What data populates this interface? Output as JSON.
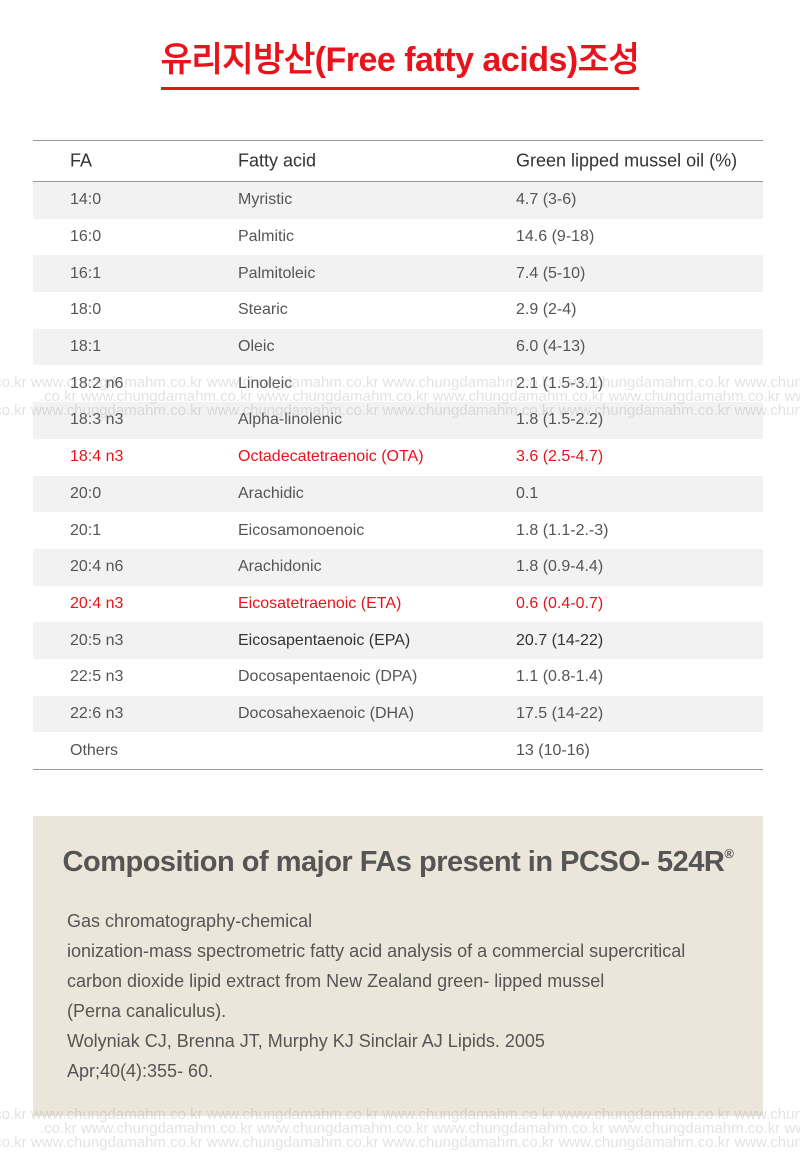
{
  "title": "유리지방산(Free fatty acids)조성",
  "table": {
    "headers": [
      "FA",
      "Fatty acid",
      "Green lipped mussel oil (%)"
    ],
    "rows": [
      {
        "fa": "14:0",
        "name": "Myristic",
        "value": "4.7 (3-6)"
      },
      {
        "fa": "16:0",
        "name": "Palmitic",
        "value": "14.6 (9-18)"
      },
      {
        "fa": "16:1",
        "name": "Palmitoleic",
        "value": "7.4 (5-10)"
      },
      {
        "fa": "18:0",
        "name": "Stearic",
        "value": "2.9 (2-4)"
      },
      {
        "fa": "18:1",
        "name": "Oleic",
        "value": "6.0 (4-13)"
      },
      {
        "fa": "18:2 n6",
        "name": "Linoleic",
        "value": "2.1 (1.5-3.1)"
      },
      {
        "fa": "18:3 n3",
        "name": "Alpha-linolenic",
        "value": "1.8 (1.5-2.2)"
      },
      {
        "fa": "18:4 n3",
        "name": "Octadecatetraenoic (OTA)",
        "value": "3.6 (2.5-4.7)",
        "highlight": "red"
      },
      {
        "fa": "20:0",
        "name": "Arachidic",
        "value": "0.1"
      },
      {
        "fa": "20:1",
        "name": "Eicosamonoenoic",
        "value": "1.8 (1.1-2.-3)"
      },
      {
        "fa": "20:4 n6",
        "name": "Arachidonic",
        "value": "1.8 (0.9-4.4)"
      },
      {
        "fa": "20:4 n3",
        "name": "Eicosatetraenoic (ETA)",
        "value": "0.6 (0.4-0.7)",
        "highlight": "red"
      },
      {
        "fa": "20:5 n3",
        "name": "Eicosapentaenoic (EPA)",
        "value": "20.7 (14-22)",
        "highlight": "bold"
      },
      {
        "fa": "22:5 n3",
        "name": "Docosapentaenoic (DPA)",
        "value": "1.1 (0.8-1.4)"
      },
      {
        "fa": "22:6 n3",
        "name": "Docosahexaenoic (DHA)",
        "value": "17.5 (14-22)"
      },
      {
        "fa": "Others",
        "name": "",
        "value": "13 (10-16)"
      }
    ]
  },
  "watermark": "www.chungdamahm.co.kr",
  "info_box": {
    "title": "Composition of major FAs present in PCSO- 524R",
    "title_mark": "®",
    "lines": [
      "Gas chromatography-chemical",
      "ionization-mass spectrometric fatty acid analysis of a commercial supercritical",
      "carbon dioxide lipid extract from New Zealand green- lipped mussel",
      "(Perna canaliculus).",
      "Wolyniak CJ, Brenna JT, Murphy KJ Sinclair AJ Lipids. 2005",
      "Apr;40(4):355- 60."
    ]
  },
  "colors": {
    "accent": "#e8131b",
    "box_bg": "#ece6da",
    "stripe": "#f2f2f2"
  }
}
